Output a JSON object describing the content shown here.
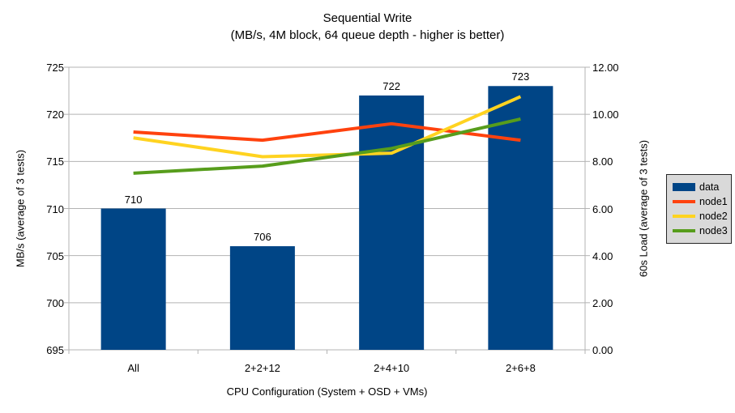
{
  "title": "Sequential Write",
  "subtitle": "(MB/s, 4M block, 64 queue depth - higher is better)",
  "chart_data": {
    "type": "bar",
    "subtype": "combo bar + line, dual axis",
    "categories": [
      "All",
      "2+2+12",
      "2+4+10",
      "2+6+8"
    ],
    "series": [
      {
        "name": "data",
        "type": "bar",
        "axis": "left",
        "color": "#004586",
        "values": [
          710,
          706,
          722,
          723
        ],
        "data_labels": [
          "710",
          "706",
          "722",
          "723"
        ]
      },
      {
        "name": "node1",
        "type": "line",
        "axis": "right",
        "color": "#ff420e",
        "values": [
          9.25,
          8.9,
          9.6,
          8.9
        ]
      },
      {
        "name": "node2",
        "type": "line",
        "axis": "right",
        "color": "#ffd320",
        "values": [
          9.0,
          8.2,
          8.35,
          10.75
        ]
      },
      {
        "name": "node3",
        "type": "line",
        "axis": "right",
        "color": "#579d1c",
        "values": [
          7.5,
          7.8,
          8.55,
          9.8
        ]
      }
    ],
    "left_axis": {
      "label": "MB/s (average of 3 tests)",
      "min": 695,
      "max": 725,
      "step": 5,
      "tick_labels": [
        "695",
        "700",
        "705",
        "710",
        "715",
        "720",
        "725"
      ]
    },
    "right_axis": {
      "label": "60s Load (average of 3 tests)",
      "min": 0,
      "max": 12,
      "step": 2,
      "tick_labels": [
        "0.00",
        "2.00",
        "4.00",
        "6.00",
        "8.00",
        "10.00",
        "12.00"
      ]
    },
    "x_axis": {
      "label": "CPU Configuration (System + OSD + VMs)"
    },
    "legend": {
      "position": "right",
      "items": [
        "data",
        "node1",
        "node2",
        "node3"
      ]
    },
    "grid": "horizontal gridlines only",
    "colors": {
      "background": "#ffffff",
      "gridline": "#b3b3b3",
      "axis": "#b3b3b3",
      "text": "#000000",
      "legend_bg": "#d9d9d9",
      "legend_border": "#262626"
    }
  }
}
